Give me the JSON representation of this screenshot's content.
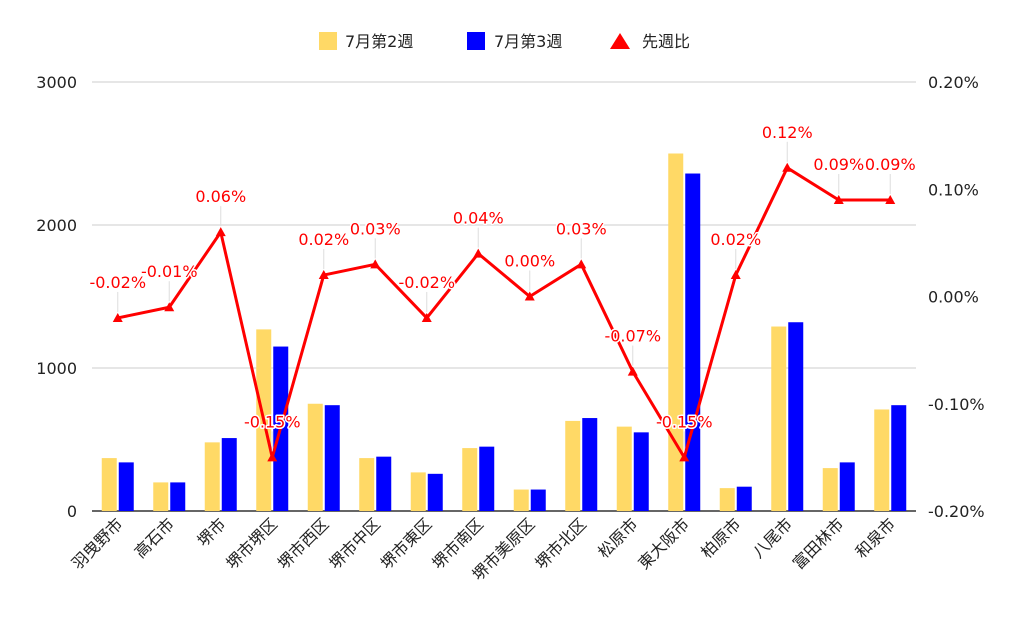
{
  "chart_data": {
    "type": "bar",
    "categories": [
      "羽曳野市",
      "高石市",
      "堺市",
      "堺市堺区",
      "堺市西区",
      "堺市中区",
      "堺市東区",
      "堺市南区",
      "堺市美原区",
      "堺市北区",
      "松原市",
      "東大阪市",
      "柏原市",
      "八尾市",
      "富田林市",
      "和泉市"
    ],
    "series": [
      {
        "name": "7月第2週",
        "type": "bar",
        "axis": "left",
        "color": "#FFD966",
        "values": [
          370,
          200,
          480,
          1270,
          750,
          370,
          270,
          440,
          150,
          630,
          590,
          2500,
          160,
          1290,
          300,
          710
        ]
      },
      {
        "name": "7月第3週",
        "type": "bar",
        "axis": "left",
        "color": "#0000FF",
        "values": [
          340,
          200,
          510,
          1150,
          740,
          380,
          260,
          450,
          150,
          650,
          550,
          2360,
          170,
          1320,
          340,
          740
        ]
      },
      {
        "name": "先週比",
        "type": "line",
        "axis": "right",
        "color": "#FF0000",
        "values": [
          -0.02,
          -0.01,
          0.06,
          -0.15,
          0.02,
          0.03,
          -0.02,
          0.04,
          0.0,
          0.03,
          -0.07,
          -0.15,
          0.02,
          0.12,
          0.09,
          0.09
        ],
        "labels": [
          "-0.02%",
          "-0.01%",
          "0.06%",
          "-0.15%",
          "0.02%",
          "0.03%",
          "-0.02%",
          "0.04%",
          "0.00%",
          "0.03%",
          "-0.07%",
          "-0.15%",
          "0.02%",
          "0.12%",
          "0.09%",
          "0.09%"
        ]
      }
    ],
    "ylim": [
      0,
      3000
    ],
    "y_ticks": [
      "3000",
      "2000",
      "1000",
      "0"
    ],
    "y2lim": [
      -0.2,
      0.2
    ],
    "y2_ticks": [
      "0.20%",
      "0.10%",
      "0.00%",
      "-0.10%",
      "-0.20%"
    ],
    "legend": {
      "position": "top-center",
      "items": [
        "7月第2週",
        "7月第3週",
        "先週比"
      ]
    },
    "grid": true,
    "xlabel": "",
    "ylabel": "",
    "title": ""
  }
}
